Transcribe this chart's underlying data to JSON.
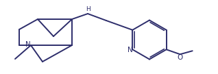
{
  "bg_color": "#ffffff",
  "line_color": "#2d2d6b",
  "line_width": 1.4,
  "figsize": [
    3.18,
    1.08
  ],
  "dpi": 100,
  "xlim": [
    0.0,
    3.18
  ],
  "ylim": [
    0.0,
    1.08
  ]
}
